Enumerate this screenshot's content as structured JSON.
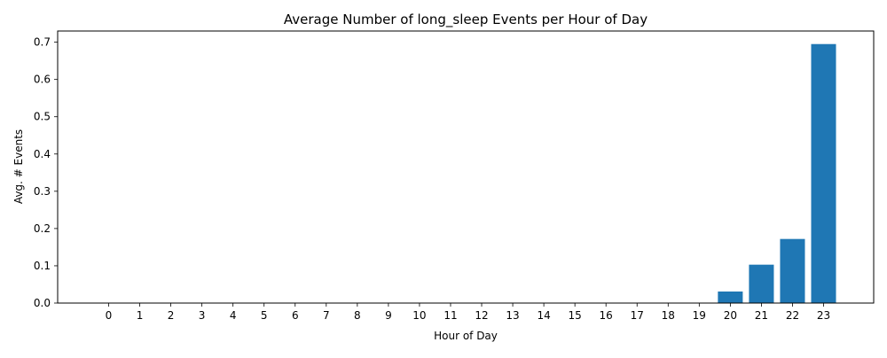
{
  "chart_data": {
    "type": "bar",
    "title": "Average Number of long_sleep Events per Hour of Day",
    "xlabel": "Hour of Day",
    "ylabel": "Avg. # Events",
    "categories": [
      "0",
      "1",
      "2",
      "3",
      "4",
      "5",
      "6",
      "7",
      "8",
      "9",
      "10",
      "11",
      "12",
      "13",
      "14",
      "15",
      "16",
      "17",
      "18",
      "19",
      "20",
      "21",
      "22",
      "23"
    ],
    "values": [
      0,
      0,
      0,
      0,
      0,
      0,
      0,
      0,
      0,
      0,
      0,
      0,
      0,
      0,
      0,
      0,
      0,
      0,
      0,
      0,
      0.031,
      0.103,
      0.172,
      0.695
    ],
    "ylim": [
      0,
      0.73
    ],
    "yticks": [
      "0.0",
      "0.1",
      "0.2",
      "0.3",
      "0.4",
      "0.5",
      "0.6",
      "0.7"
    ],
    "bar_color": "#1f77b4",
    "grid": false,
    "legend": "none"
  }
}
